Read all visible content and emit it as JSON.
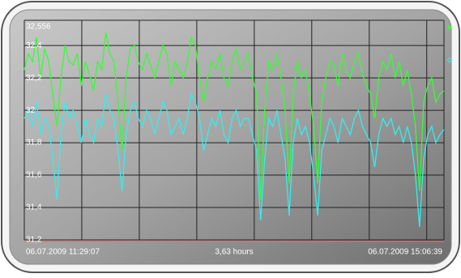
{
  "chart_data": {
    "type": "line",
    "x_start_label": "06.07.2009 11:29:07",
    "x_span_label": "3,63 hours",
    "x_end_label": "06.07.2009 15:06:39",
    "ylim": [
      31.2,
      32.556
    ],
    "yticks": [
      {
        "value": 31.2,
        "label": "31,2"
      },
      {
        "value": 31.4,
        "label": "31,4"
      },
      {
        "value": 31.6,
        "label": "31,6"
      },
      {
        "value": 31.8,
        "label": "31,8"
      },
      32,
      {
        "value": 32.2,
        "label": "32,2"
      },
      {
        "value": 32.4,
        "label": "32,4"
      },
      {
        "value": 32.556,
        "label": "32,556"
      }
    ],
    "grid": true,
    "series": [
      {
        "color": "#33ff33",
        "values": [
          32.25,
          32.35,
          32.3,
          32.45,
          32.2,
          32.38,
          32.3,
          32.1,
          31.9,
          32.2,
          32.4,
          32.3,
          32.28,
          32.35,
          32.15,
          32.3,
          32.22,
          32.12,
          32.3,
          32.25,
          32.48,
          32.35,
          32.3,
          32.05,
          31.75,
          32.2,
          32.38,
          32.4,
          32.3,
          32.25,
          32.35,
          32.28,
          32.2,
          32.3,
          32.4,
          32.35,
          32.15,
          32.3,
          32.25,
          32.2,
          32.3,
          32.45,
          32.4,
          32.2,
          32.05,
          32.2,
          32.3,
          32.25,
          32.35,
          32.2,
          32.15,
          32.3,
          32.38,
          32.25,
          32.3,
          32.35,
          32.2,
          32.1,
          31.45,
          32.0,
          32.3,
          32.25,
          32.35,
          32.2,
          32.0,
          31.55,
          32.1,
          32.3,
          32.2,
          32.25,
          32.1,
          31.9,
          31.55,
          32.05,
          32.2,
          32.3,
          32.28,
          32.15,
          32.35,
          32.25,
          32.2,
          32.3,
          32.35,
          32.22,
          32.15,
          32.1,
          31.95,
          32.2,
          32.3,
          32.25,
          32.35,
          32.2,
          32.3,
          32.15,
          32.25,
          32.1,
          31.9,
          31.5,
          32.05,
          32.15,
          32.2,
          32.05,
          32.1,
          32.12
        ]
      },
      {
        "color": "#33eeee",
        "values": [
          31.95,
          32.0,
          31.9,
          32.05,
          31.85,
          31.95,
          31.9,
          31.7,
          31.45,
          31.85,
          32.05,
          31.95,
          32.0,
          31.9,
          31.8,
          31.95,
          31.85,
          31.8,
          31.95,
          31.9,
          32.1,
          32.0,
          31.95,
          31.75,
          31.5,
          31.85,
          32.0,
          32.05,
          31.95,
          31.9,
          32.0,
          31.95,
          31.85,
          31.95,
          32.05,
          32.0,
          31.85,
          31.9,
          31.95,
          31.85,
          31.95,
          32.1,
          32.05,
          31.95,
          31.75,
          31.85,
          31.95,
          31.9,
          32.0,
          31.85,
          31.8,
          31.95,
          32.0,
          31.9,
          31.95,
          31.95,
          31.85,
          31.75,
          31.32,
          31.7,
          31.95,
          31.9,
          32.0,
          31.85,
          31.7,
          31.35,
          31.8,
          31.95,
          31.85,
          31.9,
          31.8,
          31.6,
          31.35,
          31.75,
          31.85,
          31.95,
          31.9,
          31.8,
          31.95,
          31.9,
          31.85,
          31.95,
          32.0,
          31.9,
          31.85,
          31.8,
          31.65,
          31.85,
          31.95,
          31.9,
          31.95,
          31.85,
          31.9,
          31.8,
          31.9,
          31.8,
          31.6,
          31.28,
          31.7,
          31.85,
          31.9,
          31.8,
          31.85,
          31.88
        ]
      }
    ]
  }
}
